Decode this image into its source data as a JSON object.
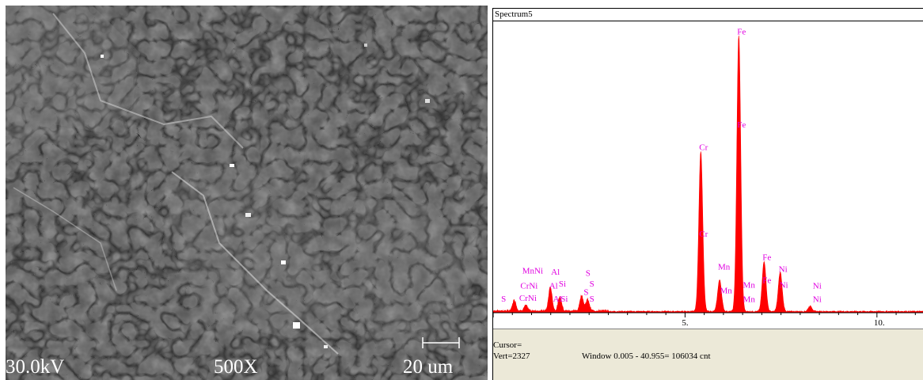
{
  "sem": {
    "voltage": "30.0kV",
    "magnification": "500X",
    "scale": "20 um"
  },
  "spectrum": {
    "title": "Spectrum5",
    "cursor_text": "Cursor=",
    "vert_text": "Vert=2327",
    "window_text": "Window 0.005 - 40.955=  106034 cnt",
    "colors": {
      "fill": "#ff0000",
      "label": "#e000e0",
      "status_bg": "#ece9d8"
    }
  },
  "chart_data": {
    "type": "area",
    "xlim": [
      0.0,
      11.2
    ],
    "ylim": [
      0,
      2400
    ],
    "x_ticks": [
      {
        "value": 5,
        "label": "5."
      },
      {
        "value": 10,
        "label": "10."
      }
    ],
    "peaks": [
      {
        "x": 2.3,
        "y": 70
      },
      {
        "x": 0.55,
        "y": 90
      },
      {
        "x": 0.85,
        "y": 45
      },
      {
        "x": 1.49,
        "y": 200
      },
      {
        "x": 1.74,
        "y": 120
      },
      {
        "x": 2.31,
        "y": 60
      },
      {
        "x": 2.46,
        "y": 95
      },
      {
        "x": 5.41,
        "y": 1350
      },
      {
        "x": 5.9,
        "y": 265
      },
      {
        "x": 6.4,
        "y": 2327
      },
      {
        "x": 7.06,
        "y": 420
      },
      {
        "x": 7.48,
        "y": 330
      },
      {
        "x": 8.26,
        "y": 45
      }
    ],
    "peak_labels": [
      {
        "text": "Fe",
        "x": 6.4,
        "y": 2345
      },
      {
        "text": "Fe",
        "x": 6.4,
        "y": 1560
      },
      {
        "text": "Cr",
        "x": 5.41,
        "y": 1370
      },
      {
        "text": "Cr",
        "x": 5.41,
        "y": 640
      },
      {
        "text": "Fe",
        "x": 7.06,
        "y": 445
      },
      {
        "text": "Mn",
        "x": 5.9,
        "y": 365
      },
      {
        "text": "Ni",
        "x": 7.48,
        "y": 345
      },
      {
        "text": "Fe",
        "x": 7.06,
        "y": 250
      },
      {
        "text": "Mn",
        "x": 5.95,
        "y": 165
      },
      {
        "text": "Ni",
        "x": 7.5,
        "y": 210
      },
      {
        "text": "Mn",
        "x": 6.55,
        "y": 210
      },
      {
        "text": "Mn",
        "x": 6.55,
        "y": 90
      },
      {
        "text": "Ni",
        "x": 8.37,
        "y": 205
      },
      {
        "text": "Ni",
        "x": 8.37,
        "y": 90
      },
      {
        "text": "Al",
        "x": 1.55,
        "y": 320
      },
      {
        "text": "Al",
        "x": 1.5,
        "y": 205
      },
      {
        "text": "Al",
        "x": 1.6,
        "y": 95
      },
      {
        "text": "Si",
        "x": 1.75,
        "y": 220
      },
      {
        "text": "Si",
        "x": 1.8,
        "y": 95
      },
      {
        "text": "S",
        "x": 2.45,
        "y": 310
      },
      {
        "text": "S",
        "x": 2.55,
        "y": 220
      },
      {
        "text": "S",
        "x": 2.4,
        "y": 150
      },
      {
        "text": "S",
        "x": 2.55,
        "y": 95
      },
      {
        "text": "MnNi",
        "x": 0.8,
        "y": 330
      },
      {
        "text": "CrNi",
        "x": 0.75,
        "y": 205
      },
      {
        "text": "CrNi",
        "x": 0.72,
        "y": 100
      },
      {
        "text": "S",
        "x": 0.25,
        "y": 95
      }
    ]
  }
}
